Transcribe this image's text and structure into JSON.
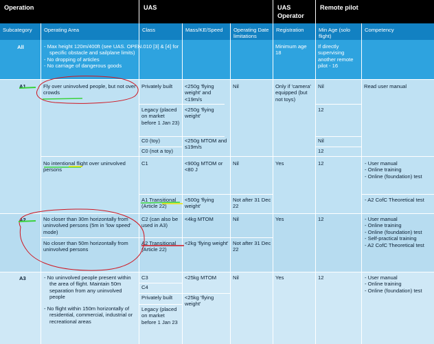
{
  "header": {
    "operation": "Operation",
    "uas": "UAS",
    "uas_operator": "UAS Operator",
    "remote_pilot": "Remote pilot"
  },
  "subheader": {
    "subcategory": "Subcategory",
    "operating_area": "Operating Area",
    "class": "Class",
    "mass": "Mass/KE/Speed",
    "operating_date": "Operating Date limitations",
    "registration": "Registration",
    "min_age": "Min Age (solo flight)",
    "competency": "Competency"
  },
  "all_row": {
    "subcategory": "All",
    "area_items": [
      "Max height 120m/400ft (see UAS. OPEN.010 [3] & [4] for specific obstacle and sailplane limits)",
      "No dropping of articles",
      "No carriage of dangerous goods"
    ],
    "registration": "Minimum age 18",
    "min_age": "If directly supervising another remote pilot - 16"
  },
  "a1": {
    "subcategory": "A1",
    "area_1": "Fly over uninvolved people, but not over crowds",
    "area_2": "No intentional flight over uninvolved persons",
    "classes": [
      {
        "class": "Privately built",
        "mass": "<250g 'flying weight' and <19m/s"
      },
      {
        "class": "Legacy (placed on market before 1 Jan 23)",
        "mass": "<250g 'flying weight'"
      },
      {
        "class": "C0 (toy)",
        "mass": "<250g MTOM and ≤19m/s"
      },
      {
        "class": "C0 (not a toy)",
        "mass": ""
      },
      {
        "class": "C1",
        "mass": "<900g MTOM or <80 J"
      },
      {
        "class": "A1 Transitional (Article 22)",
        "mass": "<500g 'flying weight'"
      }
    ],
    "date_1": "Nil",
    "date_2": "Nil",
    "date_3": "Not after 31 Dec 22",
    "registration_1": "Only if 'camera' equipped (but not toys)",
    "registration_2": "Yes",
    "ages": [
      "Nil",
      "12",
      "Nil",
      "12",
      "12"
    ],
    "competency_1": "Read user manual",
    "competency_2": [
      "User manual",
      "Online training",
      "Online (foundation) test"
    ],
    "competency_3": [
      "A2 CofC Theoretical test"
    ]
  },
  "a2": {
    "subcategory": "A2",
    "area_1": "No closer than 30m horizontally from uninvolved persons (5m in 'low speed' mode)",
    "area_2": "No closer than 50m horizontally from uninvolved persons",
    "class_1": "C2 (can also be used in A3)",
    "mass_1": "<4kg MTOM",
    "class_2": "A2 Transitional (Article 22)",
    "mass_2": "<2kg 'flying weight'",
    "date_1": "Nil",
    "date_2": "Not after 31 Dec 22",
    "registration": "Yes",
    "min_age": "12",
    "competency": [
      "User manual",
      "Online training",
      "Online (foundation) test",
      "Self-practical training",
      "A2 CofC Theoretical test"
    ]
  },
  "a3": {
    "subcategory": "A3",
    "area_items": [
      "No uninvolved people present within the area of flight.  Maintain 50m separation from any uninvolved people",
      "No flight within 150m horizontally of residential, commercial, industrial or recreational areas"
    ],
    "classes": [
      "C3",
      "C4",
      "Privately built",
      "Legacy (placed on market before 1 Jan 23"
    ],
    "mass_1": "<25kg MTOM",
    "mass_2": "<25kg 'flying weight'",
    "date": "Nil",
    "registration": "Yes",
    "min_age": "12",
    "competency": [
      "User manual",
      "Online training",
      "Online (foundation) test"
    ]
  },
  "colors": {
    "header_bg": "#000000",
    "subheader_bg": "#1281c2",
    "all_row_bg": "#2ea3df",
    "row_bg": "#bfe1f3",
    "annotation_red": "#d0141e",
    "annotation_green": "#39d23a",
    "annotation_yellow": "#f2e600"
  }
}
